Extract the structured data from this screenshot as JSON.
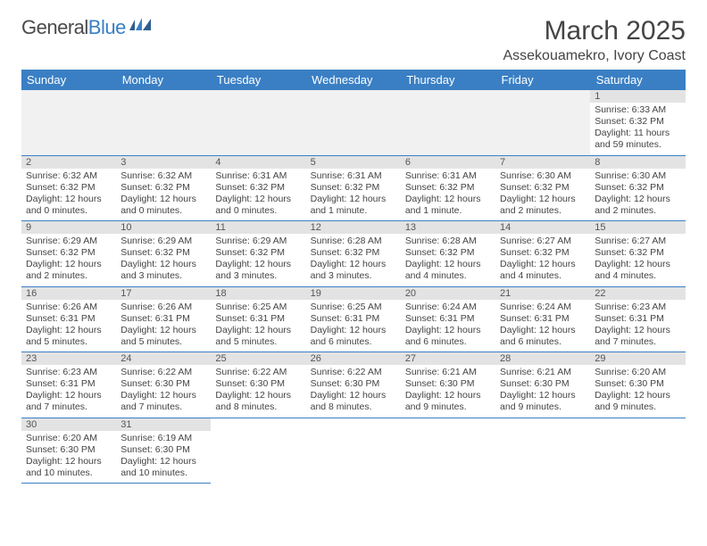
{
  "logo": {
    "text1": "General",
    "text2": "Blue"
  },
  "title": "March 2025",
  "location": "Assekouamekro, Ivory Coast",
  "colors": {
    "header_bg": "#3a7fc4",
    "header_fg": "#ffffff",
    "daynum_bg": "#e3e3e3",
    "empty_bg": "#f1f1f1",
    "border": "#3a7fc4",
    "text": "#444444"
  },
  "weekdays": [
    "Sunday",
    "Monday",
    "Tuesday",
    "Wednesday",
    "Thursday",
    "Friday",
    "Saturday"
  ],
  "weeks": [
    [
      null,
      null,
      null,
      null,
      null,
      null,
      {
        "n": "1",
        "sr": "Sunrise: 6:33 AM",
        "ss": "Sunset: 6:32 PM",
        "dl": "Daylight: 11 hours and 59 minutes."
      }
    ],
    [
      {
        "n": "2",
        "sr": "Sunrise: 6:32 AM",
        "ss": "Sunset: 6:32 PM",
        "dl": "Daylight: 12 hours and 0 minutes."
      },
      {
        "n": "3",
        "sr": "Sunrise: 6:32 AM",
        "ss": "Sunset: 6:32 PM",
        "dl": "Daylight: 12 hours and 0 minutes."
      },
      {
        "n": "4",
        "sr": "Sunrise: 6:31 AM",
        "ss": "Sunset: 6:32 PM",
        "dl": "Daylight: 12 hours and 0 minutes."
      },
      {
        "n": "5",
        "sr": "Sunrise: 6:31 AM",
        "ss": "Sunset: 6:32 PM",
        "dl": "Daylight: 12 hours and 1 minute."
      },
      {
        "n": "6",
        "sr": "Sunrise: 6:31 AM",
        "ss": "Sunset: 6:32 PM",
        "dl": "Daylight: 12 hours and 1 minute."
      },
      {
        "n": "7",
        "sr": "Sunrise: 6:30 AM",
        "ss": "Sunset: 6:32 PM",
        "dl": "Daylight: 12 hours and 2 minutes."
      },
      {
        "n": "8",
        "sr": "Sunrise: 6:30 AM",
        "ss": "Sunset: 6:32 PM",
        "dl": "Daylight: 12 hours and 2 minutes."
      }
    ],
    [
      {
        "n": "9",
        "sr": "Sunrise: 6:29 AM",
        "ss": "Sunset: 6:32 PM",
        "dl": "Daylight: 12 hours and 2 minutes."
      },
      {
        "n": "10",
        "sr": "Sunrise: 6:29 AM",
        "ss": "Sunset: 6:32 PM",
        "dl": "Daylight: 12 hours and 3 minutes."
      },
      {
        "n": "11",
        "sr": "Sunrise: 6:29 AM",
        "ss": "Sunset: 6:32 PM",
        "dl": "Daylight: 12 hours and 3 minutes."
      },
      {
        "n": "12",
        "sr": "Sunrise: 6:28 AM",
        "ss": "Sunset: 6:32 PM",
        "dl": "Daylight: 12 hours and 3 minutes."
      },
      {
        "n": "13",
        "sr": "Sunrise: 6:28 AM",
        "ss": "Sunset: 6:32 PM",
        "dl": "Daylight: 12 hours and 4 minutes."
      },
      {
        "n": "14",
        "sr": "Sunrise: 6:27 AM",
        "ss": "Sunset: 6:32 PM",
        "dl": "Daylight: 12 hours and 4 minutes."
      },
      {
        "n": "15",
        "sr": "Sunrise: 6:27 AM",
        "ss": "Sunset: 6:32 PM",
        "dl": "Daylight: 12 hours and 4 minutes."
      }
    ],
    [
      {
        "n": "16",
        "sr": "Sunrise: 6:26 AM",
        "ss": "Sunset: 6:31 PM",
        "dl": "Daylight: 12 hours and 5 minutes."
      },
      {
        "n": "17",
        "sr": "Sunrise: 6:26 AM",
        "ss": "Sunset: 6:31 PM",
        "dl": "Daylight: 12 hours and 5 minutes."
      },
      {
        "n": "18",
        "sr": "Sunrise: 6:25 AM",
        "ss": "Sunset: 6:31 PM",
        "dl": "Daylight: 12 hours and 5 minutes."
      },
      {
        "n": "19",
        "sr": "Sunrise: 6:25 AM",
        "ss": "Sunset: 6:31 PM",
        "dl": "Daylight: 12 hours and 6 minutes."
      },
      {
        "n": "20",
        "sr": "Sunrise: 6:24 AM",
        "ss": "Sunset: 6:31 PM",
        "dl": "Daylight: 12 hours and 6 minutes."
      },
      {
        "n": "21",
        "sr": "Sunrise: 6:24 AM",
        "ss": "Sunset: 6:31 PM",
        "dl": "Daylight: 12 hours and 6 minutes."
      },
      {
        "n": "22",
        "sr": "Sunrise: 6:23 AM",
        "ss": "Sunset: 6:31 PM",
        "dl": "Daylight: 12 hours and 7 minutes."
      }
    ],
    [
      {
        "n": "23",
        "sr": "Sunrise: 6:23 AM",
        "ss": "Sunset: 6:31 PM",
        "dl": "Daylight: 12 hours and 7 minutes."
      },
      {
        "n": "24",
        "sr": "Sunrise: 6:22 AM",
        "ss": "Sunset: 6:30 PM",
        "dl": "Daylight: 12 hours and 7 minutes."
      },
      {
        "n": "25",
        "sr": "Sunrise: 6:22 AM",
        "ss": "Sunset: 6:30 PM",
        "dl": "Daylight: 12 hours and 8 minutes."
      },
      {
        "n": "26",
        "sr": "Sunrise: 6:22 AM",
        "ss": "Sunset: 6:30 PM",
        "dl": "Daylight: 12 hours and 8 minutes."
      },
      {
        "n": "27",
        "sr": "Sunrise: 6:21 AM",
        "ss": "Sunset: 6:30 PM",
        "dl": "Daylight: 12 hours and 9 minutes."
      },
      {
        "n": "28",
        "sr": "Sunrise: 6:21 AM",
        "ss": "Sunset: 6:30 PM",
        "dl": "Daylight: 12 hours and 9 minutes."
      },
      {
        "n": "29",
        "sr": "Sunrise: 6:20 AM",
        "ss": "Sunset: 6:30 PM",
        "dl": "Daylight: 12 hours and 9 minutes."
      }
    ],
    [
      {
        "n": "30",
        "sr": "Sunrise: 6:20 AM",
        "ss": "Sunset: 6:30 PM",
        "dl": "Daylight: 12 hours and 10 minutes."
      },
      {
        "n": "31",
        "sr": "Sunrise: 6:19 AM",
        "ss": "Sunset: 6:30 PM",
        "dl": "Daylight: 12 hours and 10 minutes."
      },
      null,
      null,
      null,
      null,
      null
    ]
  ]
}
